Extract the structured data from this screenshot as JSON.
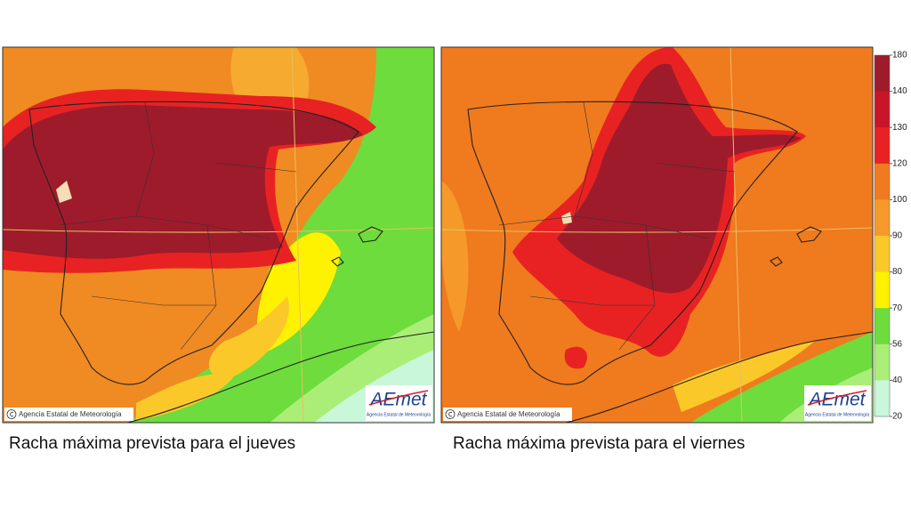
{
  "maps": [
    {
      "caption": "Racha máxima prevista para el jueves",
      "copyright": "Agencia Estatal de Meteorología",
      "logo": "AEmet",
      "logo_subtitle": "Agencia Estatal de Meteorología"
    },
    {
      "caption": "Racha máxima prevista para el viernes",
      "copyright": "Agencia Estatal de Meteorología",
      "logo": "AEmet",
      "logo_subtitle": "Agencia Estatal de Meteorología"
    }
  ],
  "legend": {
    "ticks": [
      180,
      140,
      130,
      120,
      100,
      90,
      80,
      70,
      56,
      40,
      20
    ],
    "colors": [
      "#9e1b2c",
      "#c8152a",
      "#e82222",
      "#f07a1e",
      "#f59a2a",
      "#fbc82a",
      "#fff200",
      "#6edc3c",
      "#aaee78",
      "#c8f7da"
    ]
  }
}
